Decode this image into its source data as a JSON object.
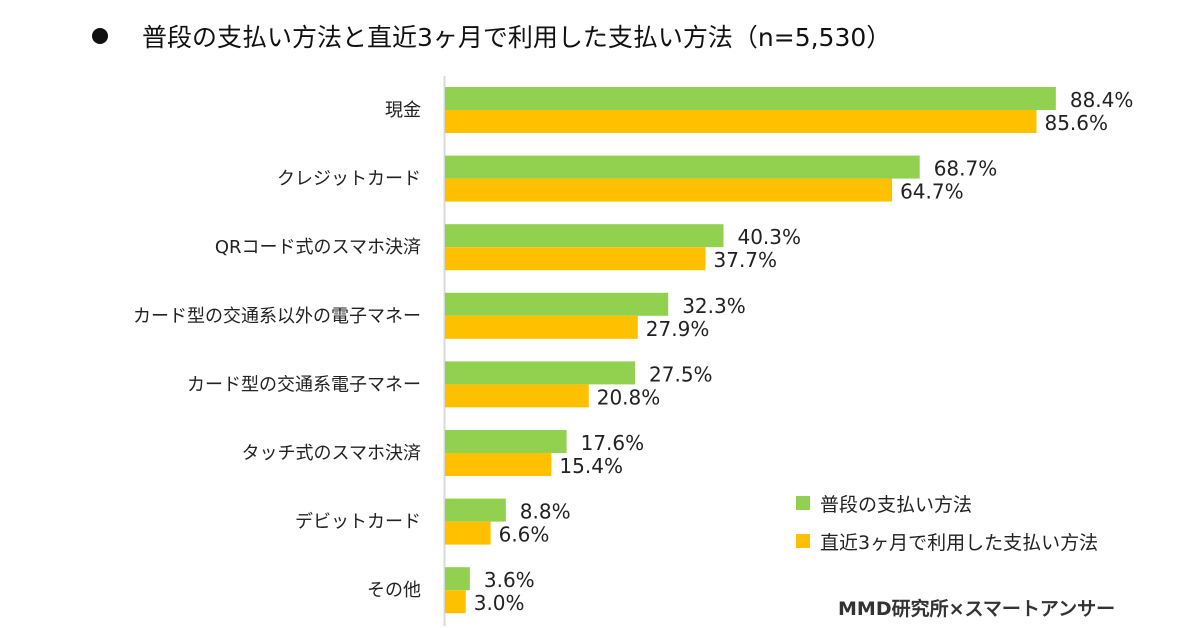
{
  "chart_data": {
    "type": "bar",
    "orientation": "horizontal",
    "title": "普段の支払い方法と直近3ヶ月で利用した支払い方法（n=5,530）",
    "xlabel": "",
    "ylabel": "",
    "xlim": [
      0,
      100
    ],
    "grid": false,
    "legend_position": "bottom-right",
    "categories": [
      "現金",
      "クレジットカード",
      "QRコード式のスマホ決済",
      "カード型の交通系以外の電子マネー",
      "カード型の交通系電子マネー",
      "タッチ式のスマホ決済",
      "デビットカード",
      "その他"
    ],
    "series": [
      {
        "name": "普段の支払い方法",
        "color": "#92D050",
        "values": [
          88.4,
          68.7,
          40.3,
          32.3,
          27.5,
          17.6,
          8.8,
          3.6
        ],
        "labels": [
          "88.4%",
          "68.7%",
          "40.3%",
          "32.3%",
          "27.5%",
          "17.6%",
          "8.8%",
          "3.6%"
        ]
      },
      {
        "name": "直近3ヶ月で利用した支払い方法",
        "color": "#FFC000",
        "values": [
          85.6,
          64.7,
          37.7,
          27.9,
          20.8,
          15.4,
          6.6,
          3.0
        ],
        "labels": [
          "85.6%",
          "64.7%",
          "37.7%",
          "27.9%",
          "20.8%",
          "15.4%",
          "6.6%",
          "3.0%"
        ]
      }
    ],
    "source": "MMD研究所×スマートアンサー"
  },
  "title": "普段の支払い方法と直近3ヶ月で利用した支払い方法（n=5,530）",
  "legend": {
    "items": [
      {
        "label": "普段の支払い方法",
        "color": "#92D050"
      },
      {
        "label": "直近3ヶ月で利用した支払い方法",
        "color": "#FFC000"
      }
    ]
  },
  "credit": "MMD研究所×スマートアンサー",
  "colors": {
    "axis": "#D9D9D9"
  }
}
